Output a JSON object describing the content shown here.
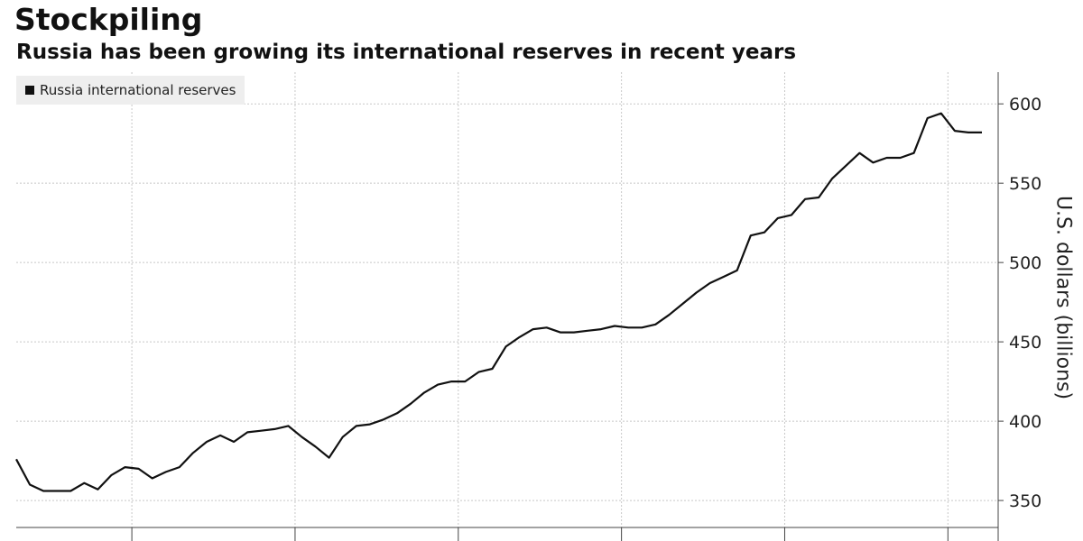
{
  "header": {
    "title": "Stockpiling",
    "subtitle": "Russia has been growing its international reserves in recent years"
  },
  "colors": {
    "line": "#111111",
    "grid": "#c8c8c8",
    "legend_bg": "#eeeeee"
  },
  "chart_data": {
    "type": "line",
    "title": "Stockpiling",
    "subtitle": "Russia has been growing its international reserves in recent years",
    "ylabel": "U.S. dollars (billions)",
    "xlabel": "",
    "ylim": [
      333,
      620
    ],
    "yticks": [
      350,
      400,
      450,
      500,
      550,
      600
    ],
    "ytick_labels": [
      "350",
      "400",
      "450",
      "500",
      "550",
      "600"
    ],
    "x_year_boundaries": [
      8.5,
      20.5,
      32.5,
      44.5,
      56.5,
      68.5
    ],
    "legend": {
      "position": "top-left",
      "entries": [
        "Russia international reserves"
      ]
    },
    "grid": true,
    "series": [
      {
        "name": "Russia international reserves",
        "x": [
          0,
          1,
          2,
          3,
          4,
          5,
          6,
          7,
          8,
          9,
          10,
          11,
          12,
          13,
          14,
          15,
          16,
          17,
          18,
          19,
          20,
          21,
          22,
          23,
          24,
          25,
          26,
          27,
          28,
          29,
          30,
          31,
          32,
          33,
          34,
          35,
          36,
          37,
          38,
          39,
          40,
          41,
          42,
          43,
          44,
          45,
          46,
          47,
          48,
          49,
          50,
          51,
          52,
          53,
          54,
          55,
          56,
          57,
          58,
          59,
          60,
          61,
          62,
          63,
          64,
          65,
          66,
          67,
          68,
          69,
          70,
          71
        ],
        "values": [
          376,
          360,
          356,
          356,
          356,
          361,
          357,
          366,
          371,
          370,
          364,
          368,
          371,
          380,
          387,
          391,
          387,
          393,
          394,
          395,
          397,
          390,
          384,
          377,
          390,
          397,
          398,
          401,
          405,
          411,
          418,
          423,
          425,
          425,
          431,
          433,
          447,
          453,
          458,
          459,
          456,
          456,
          457,
          458,
          460,
          459,
          459,
          461,
          467,
          474,
          481,
          487,
          491,
          495,
          517,
          519,
          528,
          530,
          540,
          541,
          553,
          561,
          569,
          563,
          566,
          566,
          569,
          591,
          594,
          583,
          582,
          582
        ]
      }
    ]
  }
}
